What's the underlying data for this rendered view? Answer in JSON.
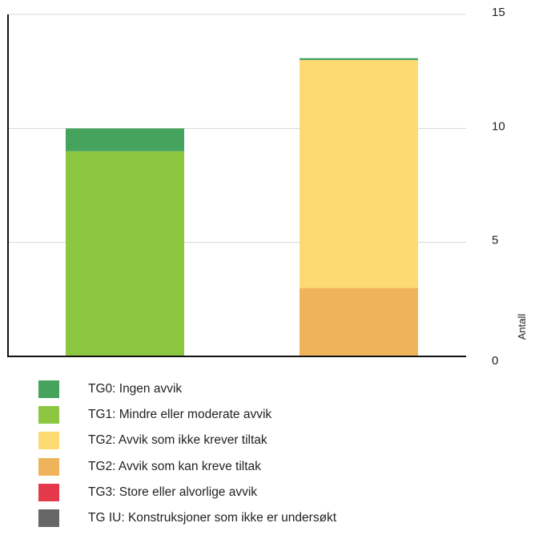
{
  "chart_data": {
    "type": "bar",
    "stacked": true,
    "categories": [
      "",
      ""
    ],
    "ylabel": "Antall",
    "xlabel": "",
    "title": "",
    "ylim": [
      0,
      15
    ],
    "yticks": [
      0,
      5,
      10,
      15
    ],
    "y_axis_side": "right",
    "grid": true,
    "legend_placement": "bottom",
    "series": [
      {
        "name": "TG2: Avvik som kan kreve tiltak",
        "color": "#EEB35B",
        "values": [
          0,
          3
        ]
      },
      {
        "name": "TG1: Mindre eller moderate avvik",
        "color": "#8DC641",
        "values": [
          9,
          0
        ]
      },
      {
        "name": "TG2: Avvik som ikke krever tiltak",
        "color": "#FEDA72",
        "values": [
          0,
          10
        ]
      },
      {
        "name": "TG0: Ingen avvik",
        "color": "#46A35E",
        "values": [
          1,
          0.08
        ]
      }
    ],
    "legend": [
      {
        "label": "TG0: Ingen avvik",
        "color": "#46A35E"
      },
      {
        "label": "TG1: Mindre eller moderate avvik",
        "color": "#8DC641"
      },
      {
        "label": "TG2: Avvik som ikke krever tiltak",
        "color": "#FEDA72"
      },
      {
        "label": "TG2: Avvik som kan kreve tiltak",
        "color": "#EEB35B"
      },
      {
        "label": "TG3: Store eller alvorlige avvik",
        "color": "#E3394A"
      },
      {
        "label": "TG IU: Konstruksjoner som ikke er undersøkt",
        "color": "#666666"
      }
    ]
  }
}
